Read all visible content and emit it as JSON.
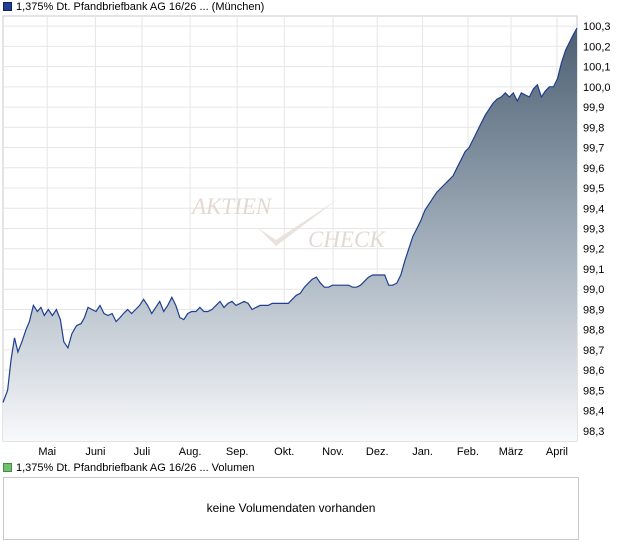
{
  "chart_data": {
    "type": "area",
    "legend": {
      "price": "1,375% Dt. Pfandbriefbank AG 16/26 ... (München)",
      "volume": "1,375% Dt. Pfandbriefbank AG 16/26 ... Volumen",
      "price_color": "#1f3f8f",
      "volume_color": "#6fbf6f"
    },
    "watermark": {
      "line1": "Aktien",
      "line2": "Check"
    },
    "y_axis": {
      "min": 98.25,
      "max": 100.35,
      "ticks": [
        "98,3",
        "98,4",
        "98,5",
        "98,6",
        "98,7",
        "98,8",
        "98,9",
        "99,0",
        "99,1",
        "99,2",
        "99,3",
        "99,4",
        "99,5",
        "99,6",
        "99,7",
        "99,8",
        "99,9",
        "100,0",
        "100,1",
        "100,2",
        "100,3"
      ]
    },
    "x_axis": {
      "range": [
        0,
        100
      ],
      "ticks": [
        {
          "label": "Mai",
          "x": 7.7
        },
        {
          "label": "Juni",
          "x": 16.1
        },
        {
          "label": "Juli",
          "x": 24.2
        },
        {
          "label": "Aug.",
          "x": 32.6
        },
        {
          "label": "Sep.",
          "x": 40.8
        },
        {
          "label": "Okt.",
          "x": 49.0
        },
        {
          "label": "Nov.",
          "x": 57.5
        },
        {
          "label": "Dez.",
          "x": 65.2
        },
        {
          "label": "Jan.",
          "x": 73.1
        },
        {
          "label": "Feb.",
          "x": 81.0
        },
        {
          "label": "März",
          "x": 88.5
        },
        {
          "label": "April",
          "x": 96.5
        }
      ]
    },
    "grid": true,
    "series": [
      {
        "color": "#1f3f8f",
        "points": [
          [
            0.0,
            98.44
          ],
          [
            0.8,
            98.5
          ],
          [
            1.4,
            98.65
          ],
          [
            2.0,
            98.76
          ],
          [
            2.6,
            98.69
          ],
          [
            3.3,
            98.74
          ],
          [
            4.0,
            98.8
          ],
          [
            4.6,
            98.84
          ],
          [
            5.3,
            98.92
          ],
          [
            6.0,
            98.89
          ],
          [
            6.6,
            98.91
          ],
          [
            7.2,
            98.87
          ],
          [
            7.9,
            98.9
          ],
          [
            8.6,
            98.87
          ],
          [
            9.3,
            98.9
          ],
          [
            10.0,
            98.85
          ],
          [
            10.6,
            98.74
          ],
          [
            11.3,
            98.71
          ],
          [
            12.0,
            98.78
          ],
          [
            12.8,
            98.82
          ],
          [
            13.6,
            98.83
          ],
          [
            14.2,
            98.86
          ],
          [
            14.8,
            98.91
          ],
          [
            15.5,
            98.9
          ],
          [
            16.2,
            98.89
          ],
          [
            16.9,
            98.92
          ],
          [
            17.6,
            98.88
          ],
          [
            18.3,
            98.87
          ],
          [
            19.0,
            98.88
          ],
          [
            19.7,
            98.84
          ],
          [
            20.4,
            98.86
          ],
          [
            21.0,
            98.88
          ],
          [
            21.7,
            98.9
          ],
          [
            22.4,
            98.88
          ],
          [
            23.1,
            98.9
          ],
          [
            23.8,
            98.92
          ],
          [
            24.5,
            98.95
          ],
          [
            25.2,
            98.92
          ],
          [
            25.9,
            98.88
          ],
          [
            26.6,
            98.91
          ],
          [
            27.3,
            98.94
          ],
          [
            28.0,
            98.89
          ],
          [
            28.7,
            98.92
          ],
          [
            29.4,
            98.96
          ],
          [
            30.1,
            98.92
          ],
          [
            30.8,
            98.86
          ],
          [
            31.5,
            98.85
          ],
          [
            32.2,
            98.88
          ],
          [
            32.9,
            98.89
          ],
          [
            33.6,
            98.89
          ],
          [
            34.3,
            98.91
          ],
          [
            35.0,
            98.89
          ],
          [
            35.7,
            98.89
          ],
          [
            36.4,
            98.9
          ],
          [
            37.1,
            98.92
          ],
          [
            37.8,
            98.94
          ],
          [
            38.5,
            98.91
          ],
          [
            39.2,
            98.93
          ],
          [
            39.9,
            98.94
          ],
          [
            40.6,
            98.92
          ],
          [
            41.3,
            98.93
          ],
          [
            42.0,
            98.94
          ],
          [
            42.7,
            98.93
          ],
          [
            43.4,
            98.9
          ],
          [
            44.1,
            98.91
          ],
          [
            44.8,
            98.92
          ],
          [
            45.5,
            98.92
          ],
          [
            46.2,
            98.92
          ],
          [
            46.9,
            98.93
          ],
          [
            47.6,
            98.93
          ],
          [
            48.3,
            98.93
          ],
          [
            49.0,
            98.93
          ],
          [
            49.7,
            98.93
          ],
          [
            50.4,
            98.95
          ],
          [
            51.1,
            98.97
          ],
          [
            51.8,
            98.98
          ],
          [
            52.5,
            99.01
          ],
          [
            53.2,
            99.03
          ],
          [
            53.9,
            99.05
          ],
          [
            54.6,
            99.06
          ],
          [
            55.3,
            99.03
          ],
          [
            56.0,
            99.01
          ],
          [
            56.7,
            99.01
          ],
          [
            57.4,
            99.02
          ],
          [
            58.1,
            99.02
          ],
          [
            58.8,
            99.02
          ],
          [
            59.5,
            99.02
          ],
          [
            60.2,
            99.02
          ],
          [
            60.9,
            99.01
          ],
          [
            61.6,
            99.01
          ],
          [
            62.3,
            99.02
          ],
          [
            63.0,
            99.04
          ],
          [
            63.7,
            99.06
          ],
          [
            64.4,
            99.07
          ],
          [
            65.1,
            99.07
          ],
          [
            65.8,
            99.07
          ],
          [
            66.5,
            99.07
          ],
          [
            67.2,
            99.02
          ],
          [
            67.9,
            99.02
          ],
          [
            68.6,
            99.03
          ],
          [
            69.3,
            99.07
          ],
          [
            70.0,
            99.14
          ],
          [
            70.7,
            99.2
          ],
          [
            71.4,
            99.26
          ],
          [
            72.1,
            99.3
          ],
          [
            72.8,
            99.34
          ],
          [
            73.5,
            99.39
          ],
          [
            74.2,
            99.42
          ],
          [
            74.9,
            99.45
          ],
          [
            75.6,
            99.48
          ],
          [
            76.3,
            99.5
          ],
          [
            77.0,
            99.52
          ],
          [
            77.7,
            99.54
          ],
          [
            78.4,
            99.56
          ],
          [
            79.1,
            99.6
          ],
          [
            79.8,
            99.64
          ],
          [
            80.5,
            99.68
          ],
          [
            81.2,
            99.7
          ],
          [
            81.9,
            99.74
          ],
          [
            82.6,
            99.78
          ],
          [
            83.3,
            99.82
          ],
          [
            84.0,
            99.86
          ],
          [
            84.7,
            99.89
          ],
          [
            85.4,
            99.92
          ],
          [
            86.1,
            99.94
          ],
          [
            86.8,
            99.95
          ],
          [
            87.5,
            99.97
          ],
          [
            88.2,
            99.95
          ],
          [
            88.9,
            99.97
          ],
          [
            89.6,
            99.93
          ],
          [
            90.3,
            99.97
          ],
          [
            91.0,
            99.96
          ],
          [
            91.7,
            99.95
          ],
          [
            92.4,
            99.99
          ],
          [
            93.1,
            100.01
          ],
          [
            93.8,
            99.95
          ],
          [
            94.5,
            99.98
          ],
          [
            95.2,
            100.0
          ],
          [
            95.9,
            100.0
          ],
          [
            96.6,
            100.04
          ],
          [
            97.3,
            100.12
          ],
          [
            98.0,
            100.18
          ],
          [
            98.7,
            100.22
          ],
          [
            99.4,
            100.26
          ],
          [
            100.0,
            100.29
          ]
        ]
      }
    ],
    "volume_message": "keine Volumendaten vorhanden"
  }
}
